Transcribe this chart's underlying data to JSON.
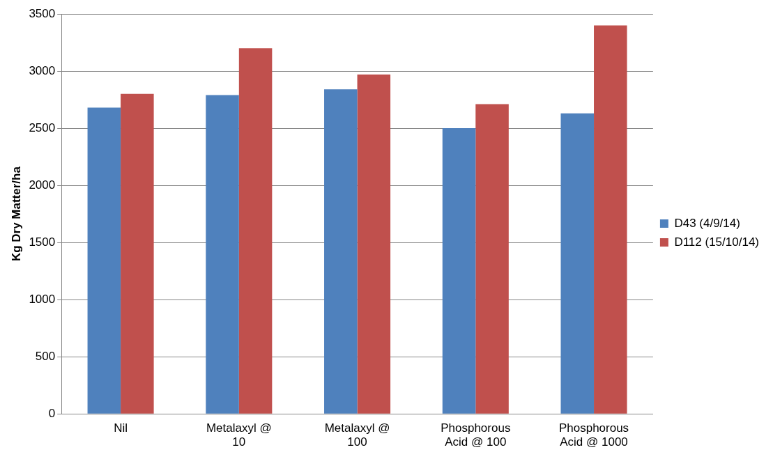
{
  "chart_data": {
    "type": "bar",
    "ylabel": "Kg Dry Matter/ha",
    "categories": [
      "Nil",
      "Metalaxyl @ 10",
      "Metalaxyl @ 100",
      "Phosphorous Acid @ 100",
      "Phosphorous Acid @ 1000"
    ],
    "series": [
      {
        "name": "D43 (4/9/14)",
        "color": "#4f81bd",
        "values": [
          2680,
          2790,
          2840,
          2500,
          2630
        ]
      },
      {
        "name": "D112 (15/10/14)",
        "color": "#c0504d",
        "values": [
          2800,
          3200,
          2970,
          2710,
          3400
        ]
      }
    ],
    "ylim": [
      0,
      3500
    ],
    "yticks": [
      0,
      500,
      1000,
      1500,
      2000,
      2500,
      3000,
      3500
    ],
    "grid": "y",
    "legend": "right"
  }
}
